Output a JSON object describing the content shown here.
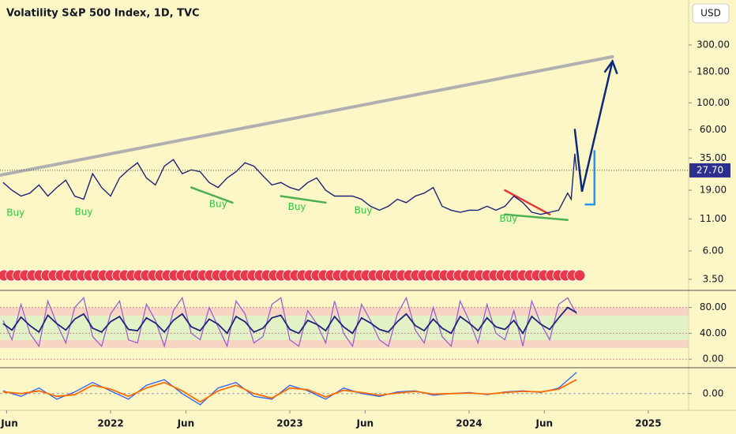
{
  "chart_data": [
    {
      "type": "line",
      "title": "Volatility S&P 500 Index, 1D, TVC",
      "currency": "USD",
      "log_scale": true,
      "xlim": [
        2021.383,
        2025.225
      ],
      "ylim": [
        2.75,
        705
      ],
      "xticks": [
        {
          "value": 2021.42,
          "label": "Jun"
        },
        {
          "value": 2022,
          "label": "2022"
        },
        {
          "value": 2022.42,
          "label": "Jun"
        },
        {
          "value": 2023,
          "label": "2023"
        },
        {
          "value": 2023.42,
          "label": "Jun"
        },
        {
          "value": 2024,
          "label": "2024"
        },
        {
          "value": 2024.42,
          "label": "Jun"
        },
        {
          "value": 2025,
          "label": "2025"
        }
      ],
      "yticks": [
        {
          "value": 300,
          "label": "300.00"
        },
        {
          "value": 180,
          "label": "180.00"
        },
        {
          "value": 100,
          "label": "100.00"
        },
        {
          "value": 60,
          "label": "60.00"
        },
        {
          "value": 35,
          "label": "35.00"
        },
        {
          "value": 19,
          "label": "19.00"
        },
        {
          "value": 11,
          "label": "11.00"
        },
        {
          "value": 6,
          "label": "6.00"
        },
        {
          "value": 3.5,
          "label": "3.50"
        }
      ],
      "last_price": {
        "value": 27.7,
        "label": "27.70"
      },
      "series": [
        {
          "color": "#1f237a",
          "x": [
            2021.4,
            2021.45,
            2021.5,
            2021.55,
            2021.6,
            2021.65,
            2021.7,
            2021.75,
            2021.8,
            2021.85,
            2021.9,
            2021.95,
            2022.0,
            2022.05,
            2022.1,
            2022.15,
            2022.2,
            2022.25,
            2022.3,
            2022.35,
            2022.4,
            2022.45,
            2022.5,
            2022.55,
            2022.6,
            2022.65,
            2022.7,
            2022.75,
            2022.8,
            2022.85,
            2022.9,
            2022.95,
            2023.0,
            2023.05,
            2023.1,
            2023.15,
            2023.2,
            2023.25,
            2023.3,
            2023.35,
            2023.4,
            2023.45,
            2023.5,
            2023.55,
            2023.6,
            2023.65,
            2023.7,
            2023.75,
            2023.8,
            2023.85,
            2023.9,
            2023.95,
            2024.0,
            2024.05,
            2024.1,
            2024.15,
            2024.2,
            2024.25,
            2024.3,
            2024.35,
            2024.4,
            2024.45,
            2024.5,
            2024.55,
            2024.57,
            2024.59,
            2024.6
          ],
          "values": [
            22,
            19,
            17,
            18,
            21,
            17,
            20,
            23,
            17,
            16,
            26,
            20,
            17,
            24,
            28,
            32,
            24,
            21,
            30,
            34,
            26,
            28,
            27,
            22,
            20,
            24,
            27,
            32,
            30,
            25,
            21,
            22,
            20,
            19,
            22,
            24,
            19,
            17,
            17,
            17,
            16,
            14,
            13,
            14,
            16,
            15,
            17,
            18,
            20,
            14,
            13,
            12.5,
            13,
            13,
            14,
            13,
            14,
            17,
            15,
            12.5,
            12,
            12.5,
            13,
            18,
            16,
            38,
            27.7
          ]
        }
      ],
      "drawings": [
        {
          "color": "#b0b0b0",
          "x": [
            2021.383,
            2024.8
          ],
          "values": [
            25.3,
            240
          ]
        },
        {
          "color": "#0d2a7a",
          "x": [
            2024.59,
            2024.63,
            2024.8
          ],
          "values": [
            60,
            18.5,
            220
          ]
        },
        {
          "color": "#2196f3",
          "x": [
            2024.65,
            2024.7,
            2024.7
          ],
          "values": [
            14.5,
            14.5,
            40
          ]
        },
        {
          "color": "#e53935",
          "x": [
            2024.2,
            2024.45
          ],
          "values": [
            19,
            12
          ]
        },
        {
          "color": "#4caf50",
          "x": [
            2024.2,
            2024.55
          ],
          "values": [
            12,
            10.8
          ]
        },
        {
          "color": "#4caf50",
          "x": [
            2022.45,
            2022.68
          ],
          "values": [
            20,
            15
          ]
        },
        {
          "color": "#4caf50",
          "x": [
            2022.95,
            2023.2
          ],
          "values": [
            17,
            15
          ]
        }
      ],
      "annotations": [
        {
          "text": "Buy",
          "x": 2021.47,
          "value": 12.3
        },
        {
          "text": "Buy",
          "x": 2021.85,
          "value": 12.5
        },
        {
          "text": "Buy",
          "x": 2022.6,
          "value": 14.5
        },
        {
          "text": "Buy",
          "x": 2023.04,
          "value": 13.8
        },
        {
          "text": "Buy",
          "x": 2023.41,
          "value": 12.9
        },
        {
          "text": "Buy",
          "x": 2024.22,
          "value": 11.0
        }
      ]
    },
    {
      "type": "line",
      "ylim": [
        -12,
        104
      ],
      "yticks": [
        {
          "value": 80,
          "label": "80.00"
        },
        {
          "value": 40,
          "label": "40.00"
        },
        {
          "value": 0,
          "label": "0.00"
        }
      ],
      "series": [
        {
          "color": "#9c5fd0",
          "x": [
            2021.4,
            2021.45,
            2021.5,
            2021.55,
            2021.6,
            2021.65,
            2021.7,
            2021.75,
            2021.8,
            2021.85,
            2021.9,
            2021.95,
            2022.0,
            2022.05,
            2022.1,
            2022.15,
            2022.2,
            2022.25,
            2022.3,
            2022.35,
            2022.4,
            2022.45,
            2022.5,
            2022.55,
            2022.6,
            2022.65,
            2022.7,
            2022.75,
            2022.8,
            2022.85,
            2022.9,
            2022.95,
            2023.0,
            2023.05,
            2023.1,
            2023.15,
            2023.2,
            2023.25,
            2023.3,
            2023.35,
            2023.4,
            2023.45,
            2023.5,
            2023.55,
            2023.6,
            2023.65,
            2023.7,
            2023.75,
            2023.8,
            2023.85,
            2023.9,
            2023.95,
            2024.0,
            2024.05,
            2024.1,
            2024.15,
            2024.2,
            2024.25,
            2024.3,
            2024.35,
            2024.4,
            2024.45,
            2024.5,
            2024.55,
            2024.6
          ],
          "values": [
            60,
            30,
            85,
            40,
            20,
            90,
            55,
            25,
            80,
            95,
            35,
            20,
            70,
            90,
            30,
            25,
            85,
            60,
            20,
            75,
            95,
            40,
            30,
            80,
            50,
            20,
            90,
            70,
            25,
            35,
            85,
            95,
            30,
            20,
            75,
            55,
            25,
            90,
            40,
            20,
            85,
            60,
            30,
            20,
            70,
            95,
            45,
            25,
            80,
            35,
            20,
            90,
            60,
            25,
            85,
            40,
            30,
            75,
            20,
            90,
            55,
            30,
            85,
            95,
            70
          ]
        },
        {
          "color": "#1f237a",
          "x": [
            2021.4,
            2021.45,
            2021.5,
            2021.55,
            2021.6,
            2021.65,
            2021.7,
            2021.75,
            2021.8,
            2021.85,
            2021.9,
            2021.95,
            2022.0,
            2022.05,
            2022.1,
            2022.15,
            2022.2,
            2022.25,
            2022.3,
            2022.35,
            2022.4,
            2022.45,
            2022.5,
            2022.55,
            2022.6,
            2022.65,
            2022.7,
            2022.75,
            2022.8,
            2022.85,
            2022.9,
            2022.95,
            2023.0,
            2023.05,
            2023.1,
            2023.15,
            2023.2,
            2023.25,
            2023.3,
            2023.35,
            2023.4,
            2023.45,
            2023.5,
            2023.55,
            2023.6,
            2023.65,
            2023.7,
            2023.75,
            2023.8,
            2023.85,
            2023.9,
            2023.95,
            2024.0,
            2024.05,
            2024.1,
            2024.15,
            2024.2,
            2024.25,
            2024.3,
            2024.35,
            2024.4,
            2024.45,
            2024.5,
            2024.55,
            2024.6
          ],
          "values": [
            55,
            45,
            65,
            52,
            42,
            68,
            55,
            45,
            62,
            70,
            48,
            42,
            58,
            66,
            46,
            44,
            64,
            56,
            42,
            60,
            70,
            50,
            44,
            62,
            54,
            40,
            66,
            58,
            42,
            48,
            64,
            68,
            46,
            40,
            60,
            54,
            44,
            66,
            50,
            40,
            64,
            56,
            46,
            42,
            58,
            70,
            52,
            44,
            62,
            48,
            40,
            66,
            56,
            44,
            64,
            50,
            46,
            60,
            40,
            66,
            54,
            46,
            64,
            80,
            72
          ]
        }
      ]
    },
    {
      "type": "line",
      "ylim": [
        -3,
        4.5
      ],
      "yticks": [
        {
          "value": 0,
          "label": "0.00"
        }
      ],
      "series": [
        {
          "color": "#2962ff",
          "x": [
            2021.4,
            2021.5,
            2021.6,
            2021.7,
            2021.8,
            2021.9,
            2022.0,
            2022.1,
            2022.2,
            2022.3,
            2022.4,
            2022.5,
            2022.6,
            2022.7,
            2022.8,
            2022.9,
            2023.0,
            2023.1,
            2023.2,
            2023.3,
            2023.4,
            2023.5,
            2023.6,
            2023.7,
            2023.8,
            2023.9,
            2024.0,
            2024.1,
            2024.2,
            2024.3,
            2024.4,
            2024.5,
            2024.6
          ],
          "values": [
            0.5,
            -0.5,
            1,
            -1,
            0.3,
            2,
            0.5,
            -1,
            1.5,
            2.5,
            0,
            -2,
            1,
            2,
            -0.5,
            -1,
            1.5,
            0.5,
            -1,
            1,
            0,
            -0.5,
            0.3,
            0.5,
            -0.3,
            0,
            0.2,
            -0.2,
            0.3,
            0.5,
            0.2,
            1,
            3.8
          ]
        },
        {
          "color": "#ff6d00",
          "x": [
            2021.4,
            2021.5,
            2021.6,
            2021.7,
            2021.8,
            2021.9,
            2022.0,
            2022.1,
            2022.2,
            2022.3,
            2022.4,
            2022.5,
            2022.6,
            2022.7,
            2022.8,
            2022.9,
            2023.0,
            2023.1,
            2023.2,
            2023.3,
            2023.4,
            2023.5,
            2023.6,
            2023.7,
            2023.8,
            2023.9,
            2024.0,
            2024.1,
            2024.2,
            2024.3,
            2024.4,
            2024.5,
            2024.6
          ],
          "values": [
            0.3,
            0,
            0.5,
            -0.5,
            -0.2,
            1.5,
            0.8,
            -0.5,
            1,
            2,
            0.5,
            -1.5,
            0.5,
            1.5,
            0,
            -0.8,
            1,
            0.7,
            -0.6,
            0.6,
            0.2,
            -0.3,
            0.1,
            0.4,
            -0.1,
            0,
            0.1,
            -0.1,
            0.2,
            0.4,
            0.3,
            0.8,
            2.5
          ]
        }
      ]
    }
  ]
}
